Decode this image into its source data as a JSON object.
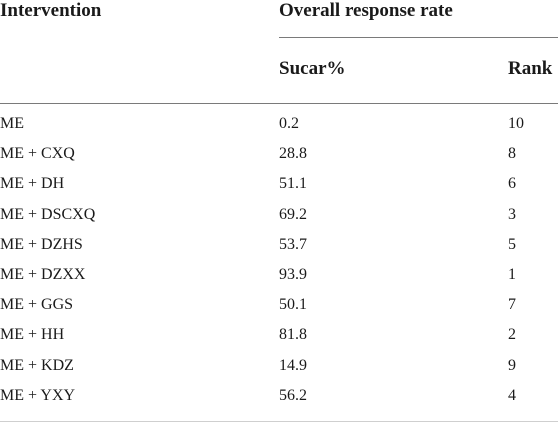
{
  "table": {
    "headers": {
      "intervention": "Intervention",
      "group": "Overall response rate",
      "sucar": "Sucar%",
      "rank": "Rank"
    },
    "rows": [
      {
        "intervention": "ME",
        "sucar": "0.2",
        "rank": "10"
      },
      {
        "intervention": "ME + CXQ",
        "sucar": "28.8",
        "rank": "8"
      },
      {
        "intervention": "ME + DH",
        "sucar": "51.1",
        "rank": "6"
      },
      {
        "intervention": "ME + DSCXQ",
        "sucar": "69.2",
        "rank": "3"
      },
      {
        "intervention": "ME + DZHS",
        "sucar": "53.7",
        "rank": "5"
      },
      {
        "intervention": "ME + DZXX",
        "sucar": "93.9",
        "rank": "1"
      },
      {
        "intervention": "ME + GGS",
        "sucar": "50.1",
        "rank": "7"
      },
      {
        "intervention": "ME + HH",
        "sucar": "81.8",
        "rank": "2"
      },
      {
        "intervention": "ME + KDZ",
        "sucar": "14.9",
        "rank": "9"
      },
      {
        "intervention": "ME + YXY",
        "sucar": "56.2",
        "rank": "4"
      }
    ]
  }
}
